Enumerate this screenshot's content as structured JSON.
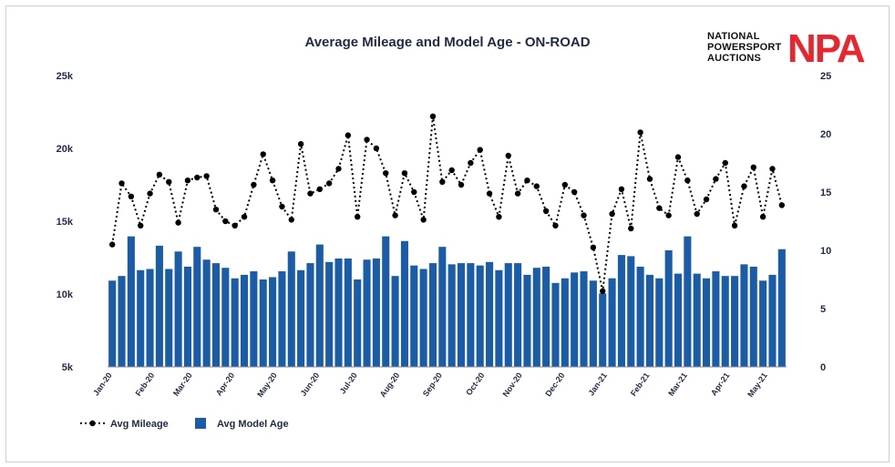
{
  "logo": {
    "line1": "NATIONAL",
    "line2": "POWERSPORT",
    "line3": "AUCTIONS",
    "mark": "NPA",
    "mark_color": "#e8262f"
  },
  "chart_data": {
    "type": "bar+line",
    "title": "Average Mileage and Model Age - ON-ROAD",
    "left_axis": {
      "min": 5000,
      "max": 25000,
      "ticks": [
        5000,
        10000,
        15000,
        20000,
        25000
      ],
      "tick_labels": [
        "5k",
        "10k",
        "15k",
        "20k",
        "25k"
      ]
    },
    "right_axis": {
      "min": 0,
      "max": 25,
      "ticks": [
        0,
        5,
        10,
        15,
        20,
        25
      ],
      "tick_labels": [
        "0",
        "5",
        "10",
        "15",
        "20",
        "25"
      ]
    },
    "x_tick_labels": [
      "Jan-20",
      "Feb-20",
      "Mar-20",
      "Apr-20",
      "May-20",
      "Jun-20",
      "Jul-20",
      "Aug-20",
      "Sep-20",
      "Oct-20",
      "Nov-20",
      "Dec-20",
      "Jan-21",
      "Feb-21",
      "Mar-21",
      "Apr-21",
      "May-21"
    ],
    "x_tick_positions": [
      0,
      4.5,
      8.5,
      13,
      17.5,
      22,
      26,
      30.5,
      35,
      39.5,
      43.5,
      48,
      52.5,
      57,
      61,
      65.5,
      69.5
    ],
    "legend": {
      "position": "bottom-left",
      "mileage_label": "Avg Mileage",
      "age_label": "Avg Model Age"
    },
    "colors": {
      "bar": "#1a5ca8",
      "line": "#000000",
      "title": "#1f2a44"
    },
    "series": [
      {
        "name": "Avg Mileage",
        "axis": "left",
        "kind": "line",
        "values": [
          13400,
          17600,
          16700,
          14700,
          16900,
          18200,
          17700,
          14900,
          17800,
          18000,
          18100,
          15800,
          15000,
          14700,
          15300,
          17500,
          19600,
          17800,
          16000,
          15100,
          20300,
          16900,
          17200,
          17600,
          18600,
          20900,
          15300,
          20600,
          20000,
          18300,
          15400,
          18300,
          17000,
          15100,
          22200,
          17700,
          18500,
          17500,
          19000,
          19900,
          16900,
          15300,
          19500,
          16900,
          17800,
          17400,
          15700,
          14700,
          17500,
          17000,
          15400,
          13200,
          10200,
          15500,
          17200,
          14500,
          21100,
          17900,
          15900,
          15400,
          19400,
          17800,
          15500,
          16500,
          17900,
          19000,
          14700,
          17400,
          18700,
          15300,
          18600,
          16100
        ]
      },
      {
        "name": "Avg Model Age",
        "axis": "right",
        "kind": "bar",
        "values": [
          7.4,
          7.8,
          11.2,
          8.3,
          8.4,
          10.4,
          8.4,
          9.9,
          8.6,
          10.3,
          9.2,
          8.9,
          8.5,
          7.6,
          7.9,
          8.2,
          7.5,
          7.7,
          8.2,
          9.9,
          8.3,
          8.9,
          10.5,
          9.0,
          9.3,
          9.3,
          7.5,
          9.2,
          9.3,
          11.2,
          7.8,
          10.8,
          8.7,
          8.4,
          8.9,
          10.3,
          8.8,
          8.9,
          8.9,
          8.7,
          9.0,
          8.3,
          8.9,
          8.9,
          7.9,
          8.5,
          8.6,
          7.2,
          7.6,
          8.1,
          8.2,
          7.4,
          6.3,
          7.6,
          9.6,
          9.5,
          8.6,
          7.9,
          7.6,
          10.0,
          8.0,
          11.2,
          8.0,
          7.6,
          8.2,
          7.8,
          7.8,
          8.8,
          8.6,
          7.4,
          7.9,
          10.1
        ]
      }
    ]
  }
}
